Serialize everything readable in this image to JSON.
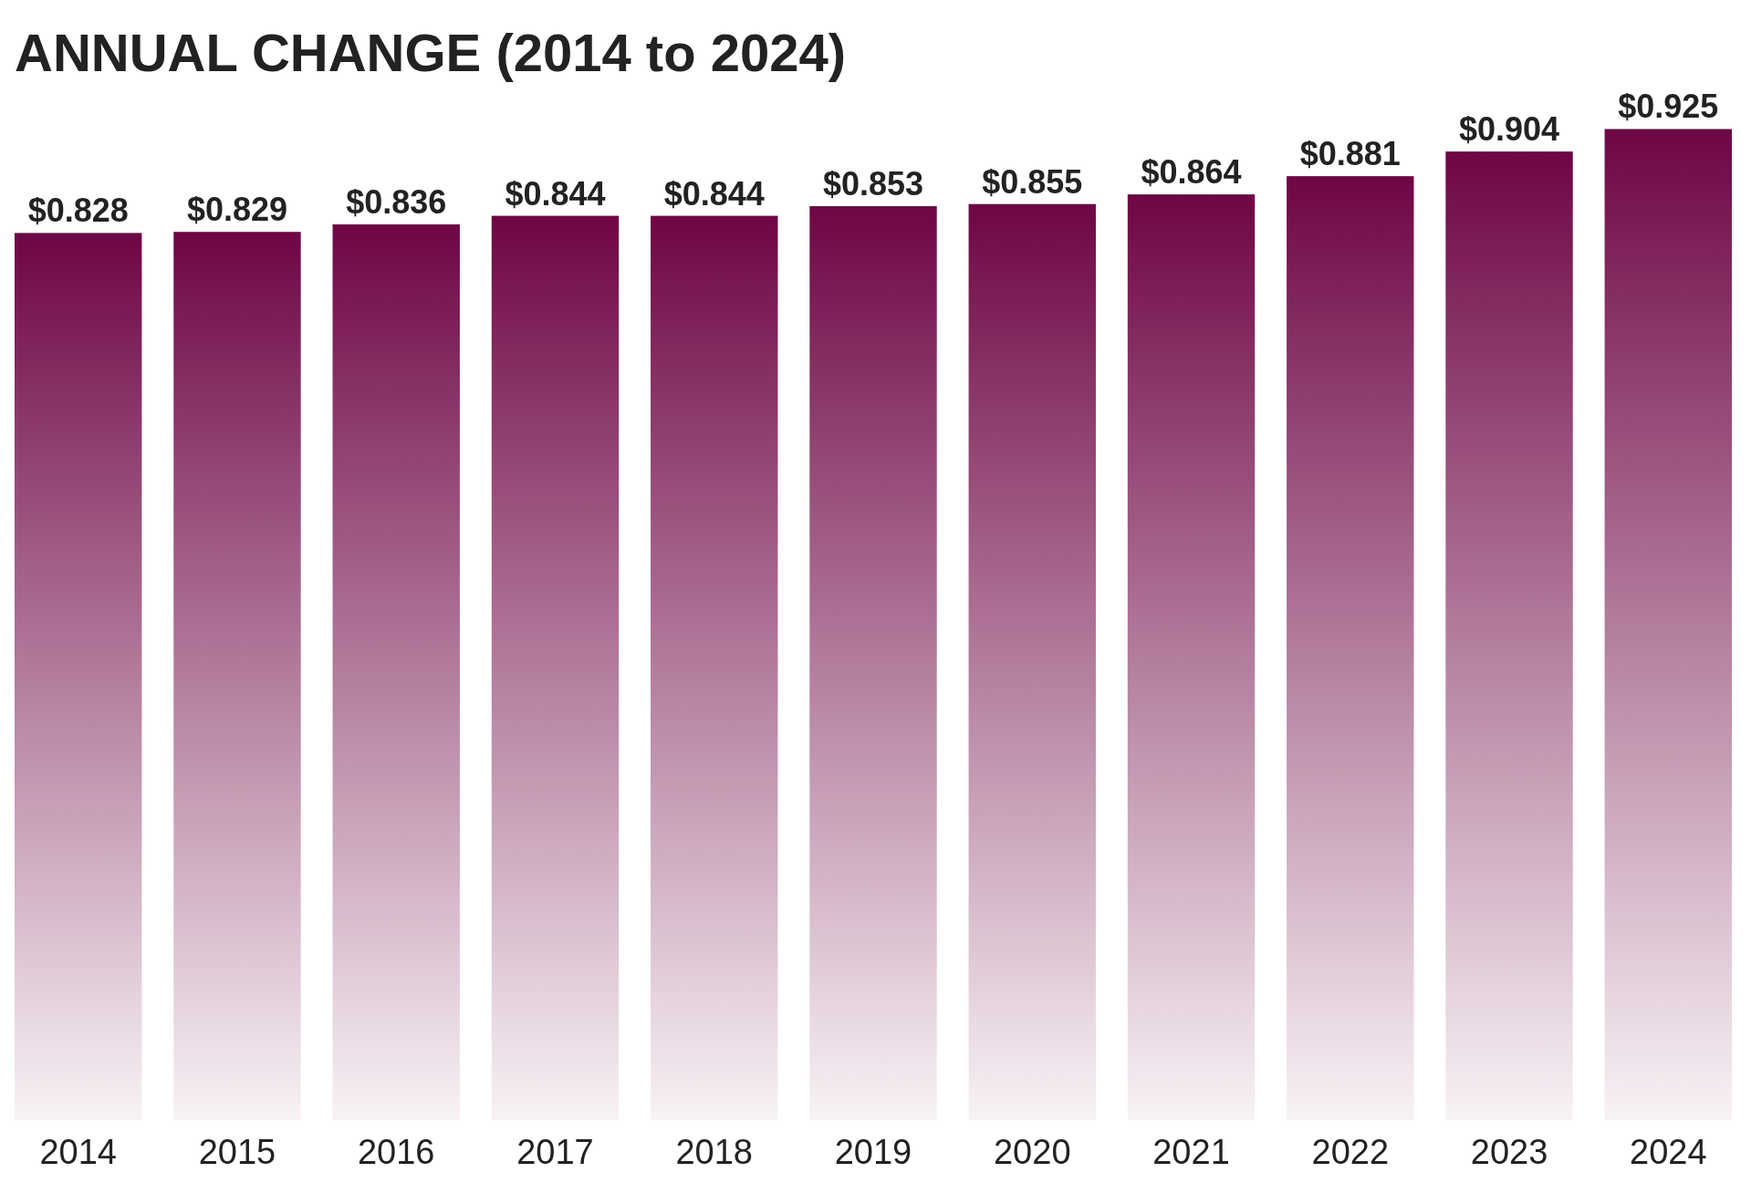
{
  "chart_data": {
    "type": "bar",
    "title": "ANNUAL CHANGE (2014 to 2024)",
    "categories": [
      "2014",
      "2015",
      "2016",
      "2017",
      "2018",
      "2019",
      "2020",
      "2021",
      "2022",
      "2023",
      "2024"
    ],
    "values": [
      0.828,
      0.829,
      0.836,
      0.844,
      0.844,
      0.853,
      0.855,
      0.864,
      0.881,
      0.904,
      0.925
    ],
    "color": "#6e0644",
    "data_labels": true,
    "value_labels": [
      "$0.828",
      "$0.829",
      "$0.836",
      "$0.844",
      "$0.844",
      "$0.853",
      "$0.855",
      "$0.864",
      "$0.881",
      "$0.904",
      "$0.925"
    ]
  }
}
